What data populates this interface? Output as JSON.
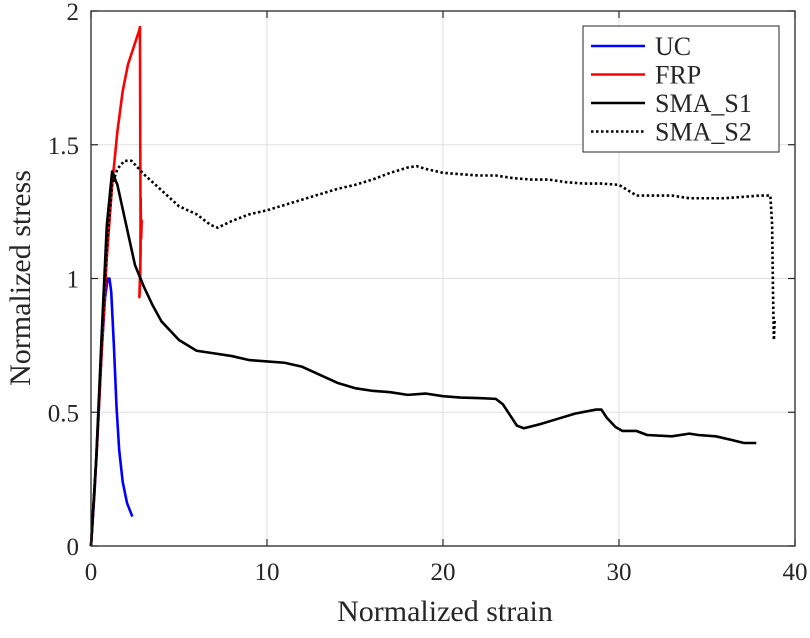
{
  "chart_data": {
    "type": "line",
    "title": "",
    "xlabel": "Normalized strain",
    "ylabel": "Normalized stress",
    "xlim": [
      0,
      40
    ],
    "ylim": [
      0,
      2
    ],
    "xticks": [
      0,
      10,
      20,
      30,
      40
    ],
    "yticks": [
      0,
      0.5,
      1,
      1.5,
      2
    ],
    "xtick_labels": [
      "0",
      "10",
      "20",
      "30",
      "40"
    ],
    "ytick_labels": [
      "0",
      "0.5",
      "1",
      "1.5",
      "2"
    ],
    "grid": true,
    "legend_position": "top-right",
    "series": [
      {
        "name": "UC",
        "color": "#0000ff",
        "dash": "solid",
        "points": [
          [
            0,
            0
          ],
          [
            0.2,
            0.2
          ],
          [
            0.4,
            0.45
          ],
          [
            0.6,
            0.72
          ],
          [
            0.8,
            0.93
          ],
          [
            0.95,
            1.0
          ],
          [
            1.05,
            1.0
          ],
          [
            1.15,
            0.95
          ],
          [
            1.3,
            0.75
          ],
          [
            1.45,
            0.52
          ],
          [
            1.6,
            0.36
          ],
          [
            1.8,
            0.24
          ],
          [
            2.05,
            0.16
          ],
          [
            2.35,
            0.11
          ]
        ]
      },
      {
        "name": "FRP",
        "color": "#ff0000",
        "dash": "solid",
        "points": [
          [
            0,
            0
          ],
          [
            0.3,
            0.32
          ],
          [
            0.6,
            0.72
          ],
          [
            0.9,
            1.08
          ],
          [
            1.2,
            1.35
          ],
          [
            1.5,
            1.55
          ],
          [
            1.8,
            1.7
          ],
          [
            2.1,
            1.8
          ],
          [
            2.5,
            1.88
          ],
          [
            2.75,
            1.93
          ],
          [
            2.78,
            1.94
          ],
          [
            2.8,
            1.5
          ],
          [
            2.82,
            1.1
          ],
          [
            2.75,
            0.93
          ],
          [
            2.8,
            1.0
          ],
          [
            2.82,
            1.3
          ],
          [
            2.85,
            1.15
          ],
          [
            2.88,
            1.22
          ]
        ]
      },
      {
        "name": "SMA_S1",
        "color": "#000000",
        "dash": "solid",
        "points": [
          [
            0,
            0
          ],
          [
            0.3,
            0.33
          ],
          [
            0.6,
            0.78
          ],
          [
            0.9,
            1.2
          ],
          [
            1.2,
            1.4
          ],
          [
            1.5,
            1.35
          ],
          [
            2.0,
            1.2
          ],
          [
            2.5,
            1.05
          ],
          [
            3,
            0.97
          ],
          [
            3.5,
            0.9
          ],
          [
            4,
            0.84
          ],
          [
            5,
            0.77
          ],
          [
            6,
            0.73
          ],
          [
            7,
            0.72
          ],
          [
            8,
            0.71
          ],
          [
            9,
            0.695
          ],
          [
            10,
            0.69
          ],
          [
            11,
            0.685
          ],
          [
            12,
            0.67
          ],
          [
            13,
            0.64
          ],
          [
            14,
            0.61
          ],
          [
            15,
            0.59
          ],
          [
            16,
            0.58
          ],
          [
            17,
            0.575
          ],
          [
            18,
            0.565
          ],
          [
            19,
            0.57
          ],
          [
            20,
            0.56
          ],
          [
            21,
            0.555
          ],
          [
            22,
            0.553
          ],
          [
            23,
            0.55
          ],
          [
            23.4,
            0.53
          ],
          [
            23.8,
            0.49
          ],
          [
            24.2,
            0.45
          ],
          [
            24.6,
            0.44
          ],
          [
            25.5,
            0.455
          ],
          [
            26.5,
            0.475
          ],
          [
            27.5,
            0.495
          ],
          [
            28.7,
            0.51
          ],
          [
            29,
            0.51
          ],
          [
            29.3,
            0.48
          ],
          [
            29.8,
            0.445
          ],
          [
            30.2,
            0.43
          ],
          [
            31,
            0.43
          ],
          [
            31.6,
            0.415
          ],
          [
            33,
            0.41
          ],
          [
            34,
            0.42
          ],
          [
            34.5,
            0.415
          ],
          [
            35.5,
            0.41
          ],
          [
            36.5,
            0.395
          ],
          [
            37.1,
            0.385
          ],
          [
            37.8,
            0.385
          ]
        ]
      },
      {
        "name": "SMA_S2",
        "color": "#000000",
        "dash": "dotted",
        "points": [
          [
            0,
            0
          ],
          [
            0.3,
            0.33
          ],
          [
            0.6,
            0.75
          ],
          [
            0.9,
            1.12
          ],
          [
            1.2,
            1.35
          ],
          [
            1.5,
            1.41
          ],
          [
            1.9,
            1.44
          ],
          [
            2.3,
            1.44
          ],
          [
            3,
            1.39
          ],
          [
            4,
            1.33
          ],
          [
            5,
            1.27
          ],
          [
            6,
            1.24
          ],
          [
            6.8,
            1.2
          ],
          [
            7.2,
            1.19
          ],
          [
            8,
            1.215
          ],
          [
            9,
            1.24
          ],
          [
            10,
            1.255
          ],
          [
            11,
            1.275
          ],
          [
            12,
            1.295
          ],
          [
            13,
            1.315
          ],
          [
            14,
            1.335
          ],
          [
            15,
            1.35
          ],
          [
            16,
            1.37
          ],
          [
            17,
            1.395
          ],
          [
            18,
            1.415
          ],
          [
            18.5,
            1.42
          ],
          [
            19,
            1.41
          ],
          [
            20,
            1.395
          ],
          [
            21,
            1.39
          ],
          [
            22,
            1.385
          ],
          [
            23,
            1.385
          ],
          [
            24,
            1.375
          ],
          [
            25,
            1.37
          ],
          [
            26,
            1.37
          ],
          [
            27,
            1.36
          ],
          [
            28,
            1.355
          ],
          [
            29,
            1.355
          ],
          [
            30,
            1.35
          ],
          [
            31,
            1.31
          ],
          [
            32,
            1.31
          ],
          [
            33,
            1.31
          ],
          [
            34,
            1.3
          ],
          [
            35,
            1.3
          ],
          [
            36,
            1.3
          ],
          [
            37,
            1.305
          ],
          [
            38,
            1.31
          ],
          [
            38.6,
            1.31
          ],
          [
            38.7,
            1.2
          ],
          [
            38.75,
            0.95
          ],
          [
            38.8,
            0.77
          ],
          [
            38.85,
            0.85
          ]
        ]
      }
    ]
  }
}
